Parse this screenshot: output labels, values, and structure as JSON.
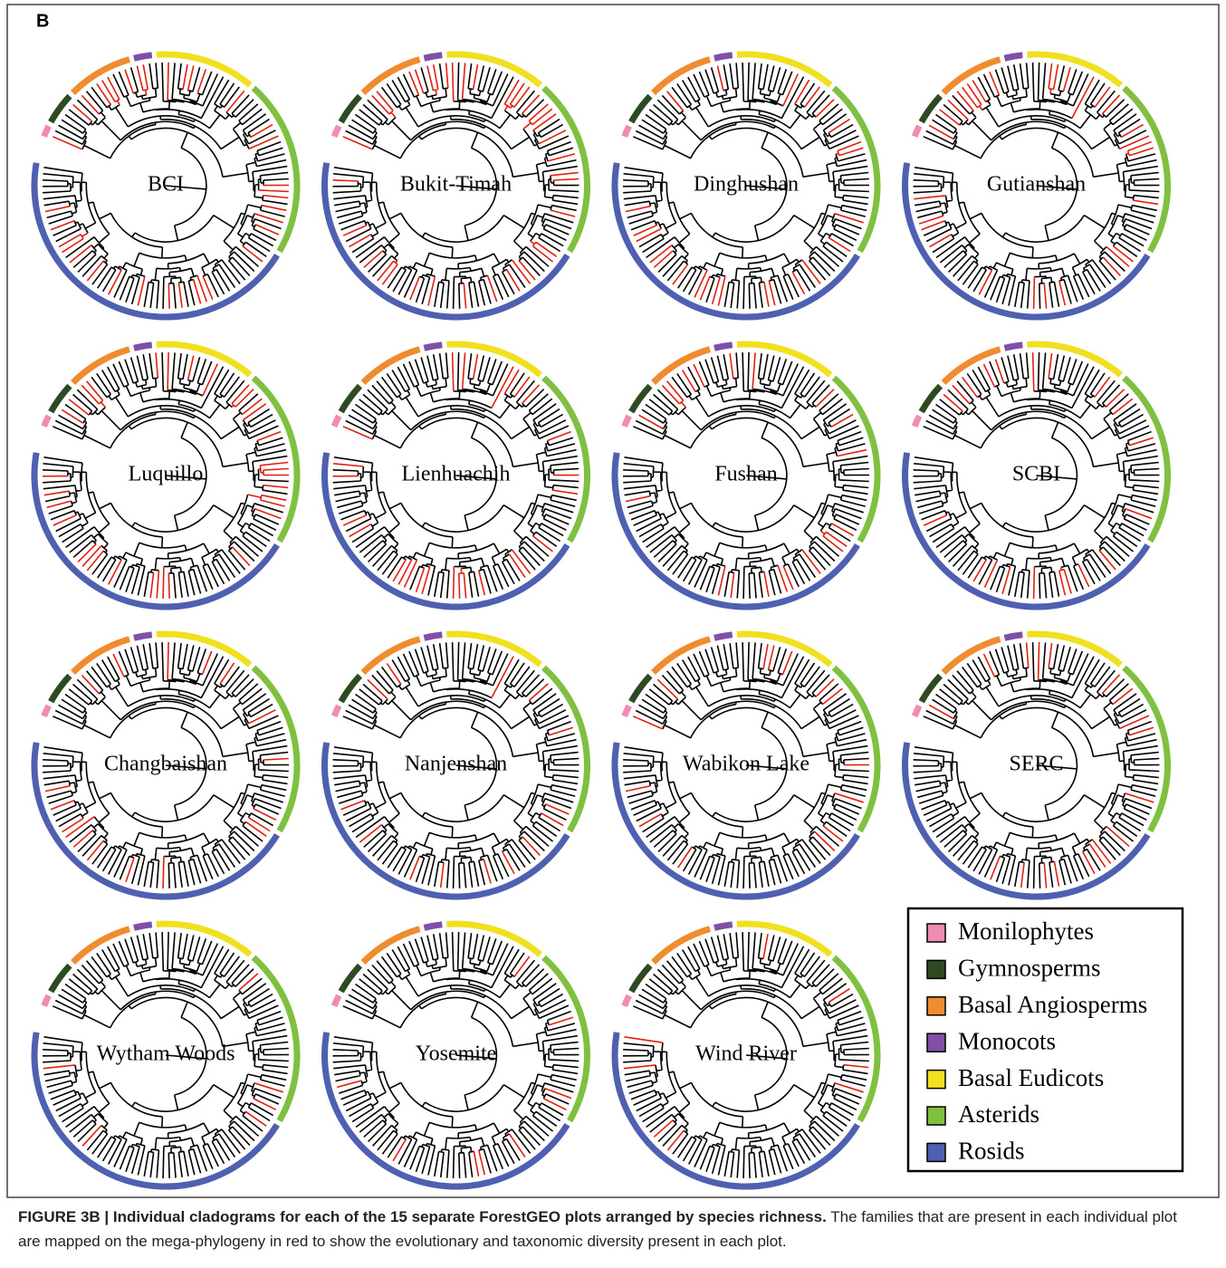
{
  "panel_label": "B",
  "plots": [
    "BCI",
    "Bukit-Timah",
    "Dinghushan",
    "Gutianshan",
    "Luquillo",
    "Lienhuachih",
    "Fushan",
    "SCBI",
    "Changbaishan",
    "Nanjenshan",
    "Wabikon Lake",
    "SERC",
    "Wytham Woods",
    "Yosemite",
    "Wind River"
  ],
  "legend": [
    {
      "label": "Monilophytes",
      "color": "#f08cb4"
    },
    {
      "label": "Gymnosperms",
      "color": "#2d4a22"
    },
    {
      "label": "Basal Angiosperms",
      "color": "#f08c30"
    },
    {
      "label": "Monocots",
      "color": "#8050a8"
    },
    {
      "label": "Basal Eudicots",
      "color": "#f0e020"
    },
    {
      "label": "Asterids",
      "color": "#80c040"
    },
    {
      "label": "Rosids",
      "color": "#5060b0"
    }
  ],
  "caption": {
    "title": "FIGURE 3B | Individual cladograms for each of the 15 separate ForestGEO plots arranged by species richness.",
    "text": "The families that are present in each individual plot are mapped on the mega-phylogeny in red to show the evolutionary and taxonomic diversity present in each plot."
  }
}
